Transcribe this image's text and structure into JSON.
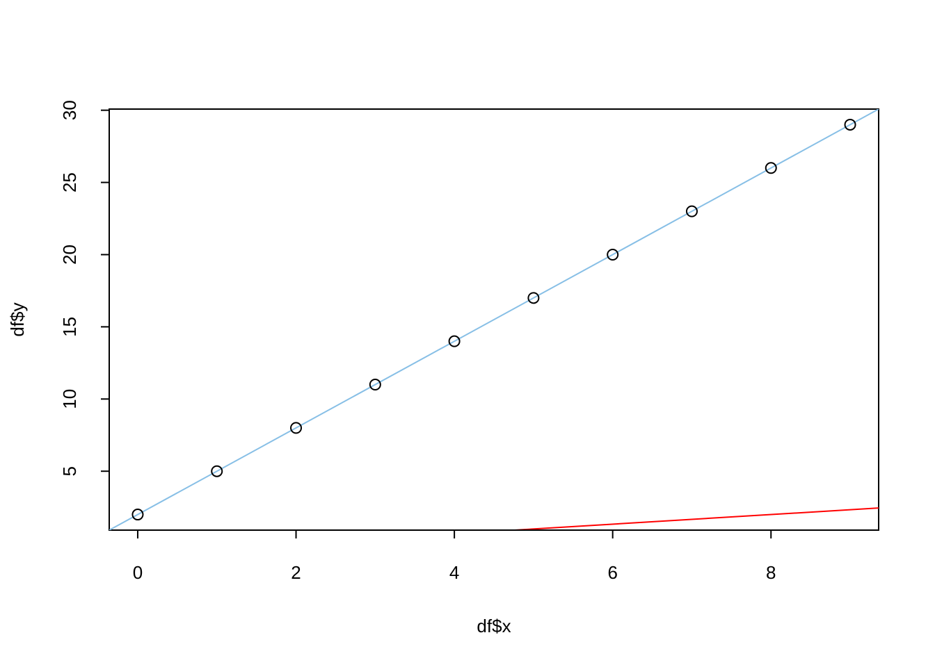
{
  "chart_data": {
    "type": "scatter",
    "x_label": "df$x",
    "y_label": "df$y",
    "x": [
      0,
      1,
      2,
      3,
      4,
      5,
      6,
      7,
      8,
      9
    ],
    "series": [
      {
        "name": "df",
        "color": "#000000",
        "values": [
          2,
          5,
          8,
          11,
          14,
          17,
          20,
          23,
          26,
          29
        ]
      }
    ],
    "lines": [
      {
        "color": "#87bfe6",
        "intercept": 2,
        "slope": 3
      },
      {
        "color": "#ff0000",
        "intercept": -0.6667,
        "slope": 0.3333
      }
    ],
    "xlim": [
      -0.36,
      9.36
    ],
    "ylim": [
      0.92,
      30.08
    ],
    "xticks": [
      0,
      2,
      4,
      6,
      8
    ],
    "yticks": [
      5,
      10,
      15,
      20,
      25,
      30
    ]
  }
}
